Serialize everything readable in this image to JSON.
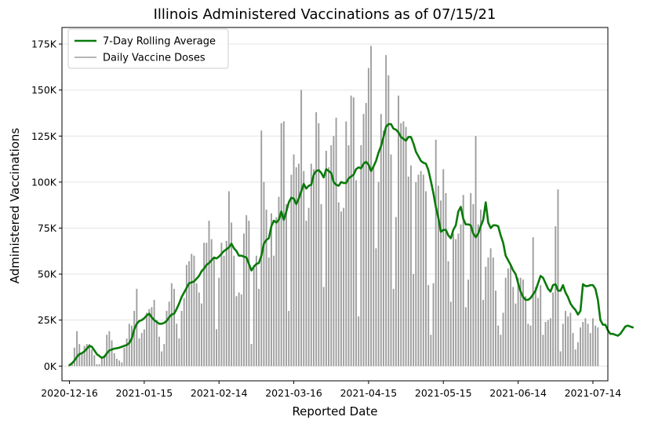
{
  "chart_data": {
    "type": "bar+line",
    "title": "Illinois Administered Vaccinations as of 07/15/21",
    "xlabel": "Reported Date",
    "ylabel": "Administered Vaccinations",
    "x_start_date": "2020-12-16",
    "x_end_date": "2021-07-14",
    "xlim_days": [
      -3,
      216
    ],
    "ylim": [
      -8000,
      184000
    ],
    "y_ticks": [
      0,
      25000,
      50000,
      75000,
      100000,
      125000,
      150000,
      175000
    ],
    "y_tick_labels": [
      "0K",
      "25K",
      "50K",
      "75K",
      "100K",
      "125K",
      "150K",
      "175K"
    ],
    "x_ticks": [
      "2020-12-16",
      "2021-01-15",
      "2021-02-14",
      "2021-03-16",
      "2021-04-15",
      "2021-05-15",
      "2021-06-14",
      "2021-07-14"
    ],
    "grid": "horizontal",
    "legend": {
      "placement": "top-left",
      "entries": [
        "7-Day Rolling Average",
        "Daily Vaccine Doses"
      ]
    },
    "colors": {
      "average": "#0a7a0a",
      "bars": "#9e9e9e"
    },
    "series": [
      {
        "name": "Daily Vaccine Doses",
        "kind": "bar",
        "values": [
          500,
          1500,
          10000,
          19000,
          12000,
          7000,
          11000,
          12000,
          12000,
          9000,
          6000,
          1000,
          1000,
          5000,
          6000,
          17000,
          19000,
          14000,
          7000,
          4000,
          3000,
          2000,
          10000,
          15000,
          23000,
          22000,
          30000,
          42000,
          15000,
          18000,
          20000,
          29000,
          31000,
          32000,
          36000,
          25000,
          16000,
          8000,
          12000,
          30000,
          35000,
          45000,
          42000,
          23000,
          15000,
          30000,
          37000,
          55000,
          57000,
          61000,
          60000,
          45000,
          40000,
          34000,
          67000,
          67000,
          79000,
          69000,
          58000,
          20000,
          48000,
          67000,
          60000,
          68000,
          95000,
          78000,
          60000,
          38000,
          40000,
          39000,
          72000,
          82000,
          79000,
          12000,
          55000,
          60000,
          42000,
          128000,
          100000,
          85000,
          59000,
          83000,
          60000,
          81000,
          92000,
          132000,
          133000,
          88000,
          30000,
          104000,
          115000,
          108000,
          110000,
          150000,
          106000,
          79000,
          86000,
          110000,
          107000,
          138000,
          132000,
          88000,
          43000,
          117000,
          108000,
          120000,
          125000,
          135000,
          89000,
          84000,
          86000,
          133000,
          120000,
          147000,
          146000,
          101000,
          27000,
          120000,
          137000,
          143000,
          162000,
          174000,
          108000,
          64000,
          100000,
          137000,
          128000,
          169000,
          158000,
          115000,
          42000,
          81000,
          147000,
          132000,
          133000,
          130000,
          103000,
          109000,
          50000,
          100000,
          104000,
          106000,
          104000,
          95000,
          44000,
          17000,
          45000,
          123000,
          98000,
          90000,
          107000,
          94000,
          57000,
          35000,
          72000,
          69000,
          72000,
          77000,
          93000,
          32000,
          47000,
          94000,
          88000,
          125000,
          77000,
          85000,
          36000,
          54000,
          59000,
          64000,
          59000,
          41000,
          22000,
          17000,
          29000,
          48000,
          53000,
          55000,
          43000,
          34000,
          48000,
          48000,
          47000,
          38000,
          23000,
          22000,
          70000,
          43000,
          37000,
          44000,
          17000,
          24000,
          25000,
          26000,
          40000,
          76000,
          96000,
          8000,
          23000,
          30000,
          27000,
          29000,
          18000,
          9000,
          13000,
          21000,
          24000,
          26000,
          23000,
          18000,
          26000,
          22000,
          21000
        ]
      },
      {
        "name": "7-Day Rolling Average",
        "kind": "line",
        "values": [
          500,
          1500,
          3000,
          5000,
          6500,
          7000,
          8000,
          9500,
          11000,
          10500,
          8500,
          6500,
          5500,
          4500,
          5000,
          7000,
          8500,
          9000,
          9500,
          9700,
          10000,
          10500,
          11000,
          11500,
          12500,
          15000,
          20000,
          23000,
          24500,
          25000,
          26000,
          27500,
          28500,
          26500,
          25000,
          24000,
          23000,
          23000,
          23500,
          24500,
          26500,
          28000,
          28500,
          31000,
          34000,
          37500,
          40000,
          42500,
          45000,
          45500,
          46000,
          47500,
          49000,
          51500,
          53000,
          55000,
          56000,
          57500,
          59000,
          58500,
          59500,
          61000,
          62500,
          63500,
          64500,
          66500,
          64000,
          62500,
          60000,
          60000,
          59500,
          59000,
          55500,
          52000,
          54000,
          55500,
          56000,
          60000,
          66500,
          68500,
          69500,
          76000,
          79000,
          78000,
          79500,
          84000,
          79500,
          84000,
          89000,
          91500,
          91000,
          88000,
          91000,
          95000,
          99000,
          96500,
          98000,
          98500,
          104000,
          106000,
          106500,
          105000,
          102500,
          107000,
          106000,
          105000,
          100000,
          98500,
          98000,
          100000,
          99500,
          99500,
          102000,
          103000,
          104000,
          107000,
          108000,
          107500,
          110000,
          111000,
          109500,
          106000,
          108500,
          111500,
          116000,
          119500,
          124500,
          130000,
          131500,
          131500,
          129000,
          128500,
          127000,
          124500,
          123500,
          122500,
          124500,
          124500,
          121000,
          116500,
          114000,
          111500,
          110500,
          110000,
          106500,
          100500,
          94000,
          86500,
          80500,
          73000,
          74000,
          74000,
          71000,
          69500,
          74000,
          76500,
          84000,
          86500,
          80000,
          77000,
          77000,
          76500,
          72000,
          70000,
          72000,
          76000,
          79500,
          89000,
          78000,
          75000,
          76500,
          76500,
          76000,
          71000,
          67000,
          60000,
          57500,
          55000,
          52000,
          50000,
          45000,
          40500,
          37500,
          36000,
          36000,
          37000,
          39000,
          41000,
          45000,
          49000,
          48000,
          45000,
          42000,
          40500,
          44000,
          44500,
          41000,
          41000,
          44000,
          40000,
          37500,
          34000,
          32000,
          30500,
          28000,
          30000,
          44500,
          43500,
          43500,
          44000,
          44000,
          42000,
          36000,
          25000,
          22500,
          22500,
          19500,
          17500,
          17500,
          17000,
          16500,
          17500,
          19500,
          21500,
          22000,
          21500,
          21000
        ]
      }
    ]
  }
}
